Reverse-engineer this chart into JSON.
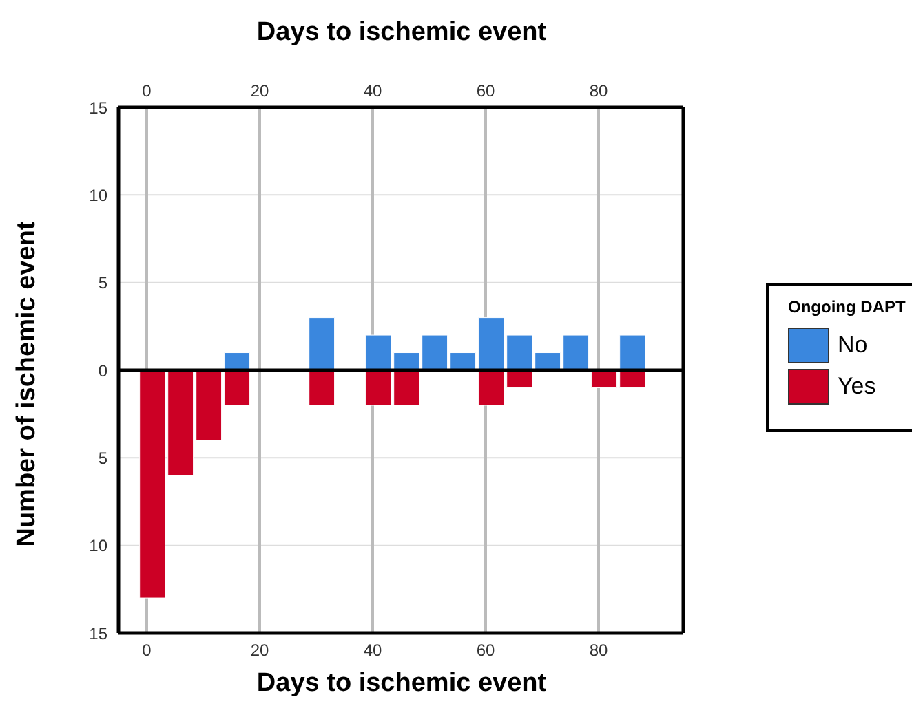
{
  "chart_data": {
    "type": "bar",
    "xlabel": "Days to ischemic event",
    "x2label": "Days to ischemic event",
    "ylabel": "Number of ischemic event",
    "legend_title": "Ongoing DAPT",
    "x": [
      1,
      6,
      11,
      16,
      21,
      26,
      31,
      36,
      41,
      46,
      51,
      56,
      61,
      66,
      71,
      76,
      81,
      86
    ],
    "series": [
      {
        "name": "No",
        "color": "#3a87de",
        "values": [
          0,
          0,
          0,
          1,
          0,
          0,
          3,
          0,
          2,
          1,
          2,
          1,
          3,
          2,
          1,
          2,
          0,
          2
        ]
      },
      {
        "name": "Yes",
        "color": "#cc0025",
        "values": [
          -13,
          -6,
          -4,
          -2,
          0,
          0,
          -2,
          0,
          -2,
          -2,
          0,
          0,
          -2,
          -1,
          0,
          0,
          -1,
          -1
        ]
      }
    ],
    "stacked": true,
    "xlim": [
      -5,
      95
    ],
    "xticks": [
      0,
      20,
      40,
      60,
      80
    ],
    "x2lim": [
      -5,
      95
    ],
    "x2ticks": [
      0,
      20,
      40,
      60,
      80
    ],
    "ylim": [
      -15,
      15
    ],
    "yticks": [
      {
        "value": -15,
        "label": "15"
      },
      {
        "value": -10,
        "label": "10"
      },
      {
        "value": -5,
        "label": "5"
      },
      0,
      5,
      10,
      15
    ],
    "ref_lines": [
      {
        "axis": "y",
        "value": 0,
        "color": "#000000"
      }
    ],
    "grid": true,
    "legend": "right"
  }
}
